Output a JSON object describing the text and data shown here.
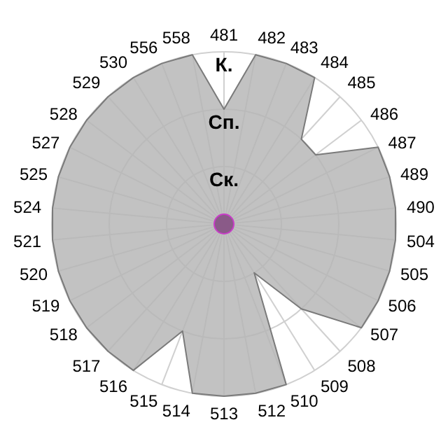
{
  "chart_data": {
    "type": "radar",
    "categories": [
      "481",
      "482",
      "483",
      "484",
      "485",
      "486",
      "487",
      "489",
      "490",
      "504",
      "505",
      "506",
      "507",
      "508",
      "509",
      "510",
      "512",
      "513",
      "514",
      "515",
      "516",
      "517",
      "518",
      "519",
      "520",
      "521",
      "524",
      "525",
      "527",
      "528",
      "529",
      "530",
      "556",
      "558"
    ],
    "series": [
      {
        "color": "#b4b4b4",
        "values": [
          2,
          3,
          3,
          3,
          2,
          2,
          3,
          3,
          3,
          3,
          3,
          3,
          3,
          2,
          1,
          3,
          3,
          3,
          3,
          2,
          3,
          3,
          3,
          3,
          3,
          3,
          3,
          3,
          3,
          3,
          3,
          3,
          3,
          3
        ]
      }
    ],
    "ylim": [
      0,
      3
    ],
    "yticks": [
      {
        "value": 1,
        "label": "Ск."
      },
      {
        "value": 2,
        "label": "Сп."
      },
      {
        "value": 3,
        "label": "К."
      }
    ],
    "grid": true,
    "marker": "none",
    "legend": false
  }
}
